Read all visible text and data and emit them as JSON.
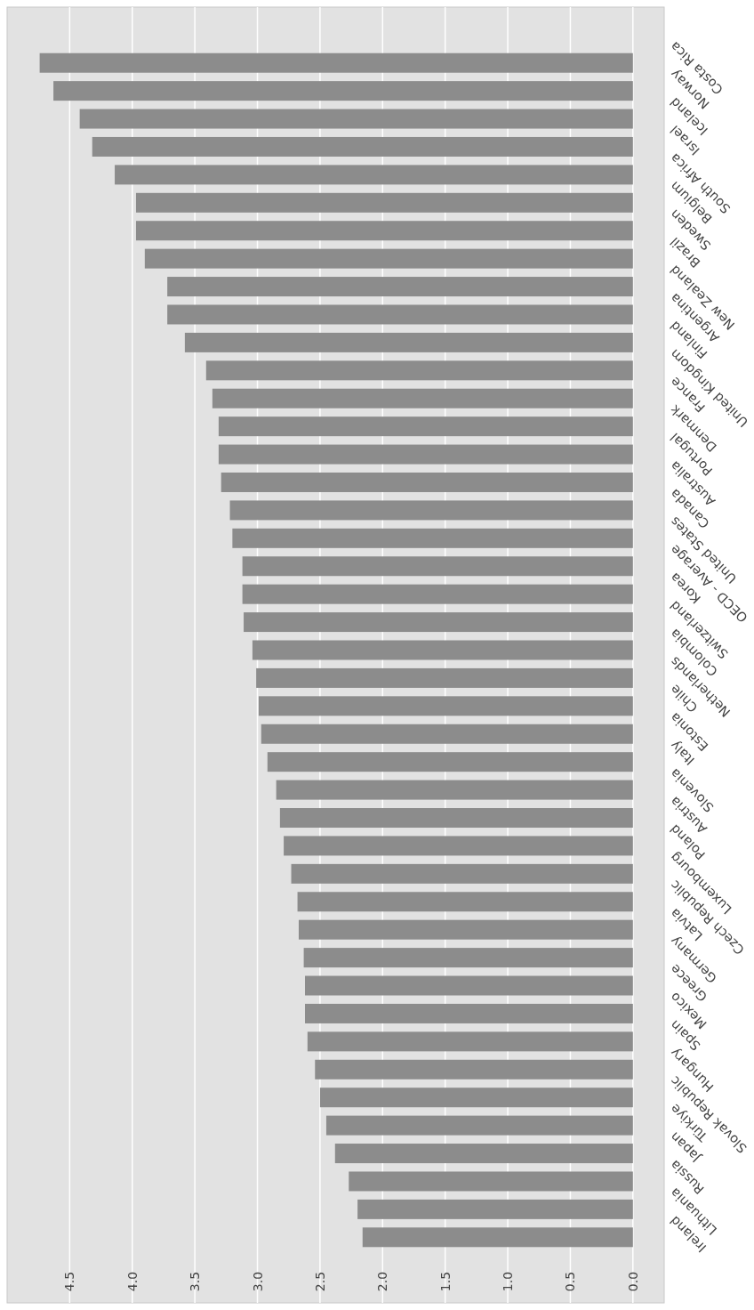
{
  "chart_data": {
    "type": "bar",
    "orientation": "horizontal",
    "categories": [
      "Costa Rica",
      "Norway",
      "Iceland",
      "Israel",
      "South Africa",
      "Belgium",
      "Sweden",
      "Brazil",
      "New Zealand",
      "Argentina",
      "Finland",
      "United Kingdom",
      "France",
      "Denmark",
      "Portugal",
      "Australia",
      "Canada",
      "United States",
      "OECD - Average",
      "Korea",
      "Switzerland",
      "Colombia",
      "Netherlands",
      "Chile",
      "Estonia",
      "Italy",
      "Slovenia",
      "Austria",
      "Poland",
      "Luxembourg",
      "Czech Republic",
      "Latvia",
      "Germany",
      "Greece",
      "Mexico",
      "Spain",
      "Hungary",
      "Slovak Republic",
      "Türkiye",
      "Japan",
      "Russia",
      "Lithuania",
      "Ireland"
    ],
    "values": [
      4.74,
      4.63,
      4.42,
      4.32,
      4.14,
      3.97,
      3.97,
      3.9,
      3.72,
      3.72,
      3.58,
      3.41,
      3.36,
      3.31,
      3.31,
      3.29,
      3.22,
      3.2,
      3.12,
      3.12,
      3.11,
      3.04,
      3.01,
      2.99,
      2.97,
      2.92,
      2.85,
      2.82,
      2.79,
      2.73,
      2.68,
      2.67,
      2.63,
      2.62,
      2.62,
      2.6,
      2.54,
      2.5,
      2.45,
      2.38,
      2.27,
      2.2,
      2.16
    ],
    "color": "#8c8c8c",
    "xlim": [
      5.0,
      -0.25
    ],
    "xticks": [
      {
        "value": 0,
        "label": "0.0"
      },
      0.5,
      {
        "value": 1,
        "label": "1.0"
      },
      1.5,
      {
        "value": 2,
        "label": "2.0"
      },
      2.5,
      {
        "value": 3,
        "label": "3.0"
      },
      3.5,
      {
        "value": 4,
        "label": "4.0"
      },
      4.5
    ],
    "grid": "x"
  }
}
